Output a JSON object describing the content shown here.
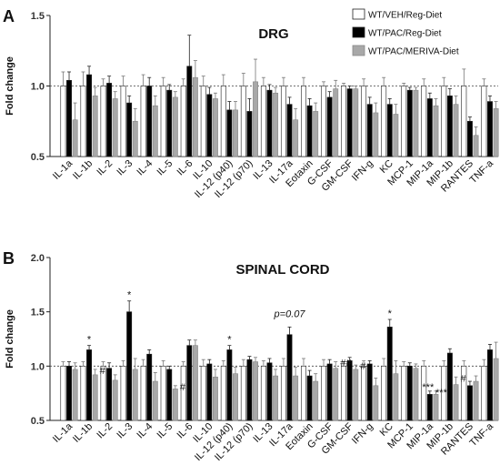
{
  "chart_data": [
    {
      "type": "bar",
      "panel": "A",
      "title": "DRG",
      "ylabel": "Fold change",
      "ylim": [
        0.5,
        1.5
      ],
      "yticks": [
        "0.5",
        "1.0",
        "1.5"
      ],
      "reference_line": 1.0,
      "legend_position": "top-right",
      "categories": [
        "IL-1a",
        "IL-1b",
        "IL-2",
        "IL-3",
        "IL-4",
        "IL-5",
        "IL-6",
        "IL-10",
        "IL-12 (p40)",
        "IL-12 (p70)",
        "IL-13",
        "IL-17a",
        "Eotaxin",
        "G-CSF",
        "GM-CSF",
        "IFN-g",
        "KC",
        "MCP-1",
        "MIP-1a",
        "MIP-1b",
        "RANTES",
        "TNF-a"
      ],
      "series": [
        {
          "name": "WT/VEH/Reg-Diet",
          "color": "#ffffff",
          "values": [
            1.0,
            1.0,
            1.0,
            1.0,
            1.0,
            1.0,
            1.0,
            1.0,
            1.0,
            1.0,
            1.0,
            1.0,
            1.0,
            1.0,
            1.0,
            1.0,
            1.0,
            1.0,
            1.0,
            1.0,
            1.0,
            1.0
          ],
          "errors": [
            0.1,
            0.1,
            0.05,
            0.07,
            0.08,
            0.06,
            0.05,
            0.07,
            0.08,
            0.09,
            0.06,
            0.06,
            0.06,
            0.03,
            0.02,
            0.05,
            0.06,
            0.02,
            0.05,
            0.06,
            0.12,
            0.05
          ]
        },
        {
          "name": "WT/PAC/Reg-Diet",
          "color": "#000000",
          "values": [
            1.04,
            1.08,
            1.02,
            0.88,
            1.0,
            0.97,
            1.14,
            0.94,
            0.83,
            0.82,
            0.97,
            0.87,
            0.86,
            0.92,
            0.98,
            0.87,
            0.87,
            0.97,
            0.91,
            0.93,
            0.75,
            0.89
          ],
          "errors": [
            0.06,
            0.06,
            0.05,
            0.05,
            0.06,
            0.04,
            0.22,
            0.05,
            0.06,
            0.09,
            0.04,
            0.05,
            0.05,
            0.04,
            0.02,
            0.05,
            0.04,
            0.02,
            0.04,
            0.05,
            0.03,
            0.04
          ]
        },
        {
          "name": "WT/PAC/MERIVA-Diet",
          "color": "#a8a8a8",
          "values": [
            0.76,
            0.93,
            0.91,
            0.75,
            0.86,
            0.92,
            1.06,
            0.91,
            0.83,
            1.03,
            0.95,
            0.76,
            0.82,
            0.98,
            0.98,
            0.81,
            0.8,
            0.97,
            0.86,
            0.87,
            0.65,
            0.84
          ],
          "errors": [
            0.12,
            0.06,
            0.05,
            0.09,
            0.07,
            0.04,
            0.12,
            0.04,
            0.06,
            0.16,
            0.04,
            0.08,
            0.06,
            0.06,
            0.02,
            0.07,
            0.07,
            0.02,
            0.05,
            0.06,
            0.06,
            0.05
          ]
        }
      ]
    },
    {
      "type": "bar",
      "panel": "B",
      "title": "SPINAL CORD",
      "ylabel": "Fold change",
      "ylim": [
        0.5,
        2.0
      ],
      "yticks": [
        "0.5",
        "1.0",
        "1.5",
        "2.0"
      ],
      "reference_line": 1.0,
      "categories": [
        "IL-1a",
        "IL-1b",
        "IL-2",
        "IL-3",
        "IL-4",
        "IL-5",
        "IL-6",
        "IL-10",
        "IL-12 (p40)",
        "IL-12 (p70)",
        "IL-13",
        "IL-17a",
        "Eotaxin",
        "G-CSF",
        "GM-CSF",
        "IFN-g",
        "KC",
        "MCP-1",
        "MIP-1a",
        "MIP-1b",
        "RANTES",
        "TNF-a"
      ],
      "series": [
        {
          "name": "WT/VEH/Reg-Diet",
          "color": "#ffffff",
          "values": [
            1.0,
            1.0,
            1.0,
            1.0,
            1.0,
            1.0,
            1.0,
            1.0,
            1.0,
            1.0,
            1.0,
            1.0,
            1.0,
            1.0,
            1.0,
            1.0,
            1.0,
            1.0,
            1.0,
            1.0,
            1.0,
            1.0
          ],
          "errors": [
            0.04,
            0.04,
            0.04,
            0.05,
            0.06,
            0.05,
            0.04,
            0.06,
            0.05,
            0.06,
            0.05,
            0.07,
            0.07,
            0.06,
            0.04,
            0.05,
            0.07,
            0.04,
            0.05,
            0.05,
            0.05,
            0.06
          ]
        },
        {
          "name": "WT/PAC/Reg-Diet",
          "color": "#000000",
          "values": [
            1.0,
            1.15,
            0.98,
            1.5,
            1.11,
            0.97,
            1.19,
            1.02,
            1.15,
            1.06,
            1.03,
            1.29,
            0.91,
            1.02,
            1.05,
            1.02,
            1.36,
            1.0,
            0.74,
            1.12,
            0.82,
            1.15
          ],
          "errors": [
            0.04,
            0.04,
            0.05,
            0.1,
            0.04,
            0.03,
            0.05,
            0.04,
            0.04,
            0.03,
            0.04,
            0.07,
            0.05,
            0.04,
            0.03,
            0.03,
            0.07,
            0.03,
            0.03,
            0.04,
            0.04,
            0.05
          ]
        },
        {
          "name": "WT/PAC/MERIVA-Diet",
          "color": "#a8a8a8",
          "values": [
            0.97,
            0.92,
            0.87,
            0.97,
            0.86,
            0.79,
            1.19,
            0.9,
            0.93,
            1.04,
            0.91,
            0.91,
            0.86,
            0.98,
            0.97,
            0.82,
            0.93,
            0.98,
            0.74,
            0.83,
            0.86,
            1.07
          ],
          "errors": [
            0.06,
            0.05,
            0.05,
            0.1,
            0.08,
            0.03,
            0.05,
            0.07,
            0.06,
            0.04,
            0.06,
            0.08,
            0.07,
            0.06,
            0.04,
            0.07,
            0.12,
            0.04,
            0.03,
            0.07,
            0.05,
            0.15
          ]
        }
      ],
      "annotations": [
        {
          "category": "IL-1b",
          "series": 1,
          "text": "*"
        },
        {
          "category": "IL-1b",
          "series": 2,
          "text": "#"
        },
        {
          "category": "IL-3",
          "series": 1,
          "text": "*"
        },
        {
          "category": "IL-5",
          "series": 2,
          "text": "#"
        },
        {
          "category": "IL-12 (p40)",
          "series": 1,
          "text": "*"
        },
        {
          "category": "IL-17a",
          "series": 1,
          "text": "p=0.07",
          "style": "italic"
        },
        {
          "category": "G-CSF",
          "series": 2,
          "text": "##"
        },
        {
          "category": "GM-CSF",
          "series": 2,
          "text": "#"
        },
        {
          "category": "KC",
          "series": 1,
          "text": "*"
        },
        {
          "category": "MIP-1a",
          "series": 1,
          "text": "***"
        },
        {
          "category": "MIP-1a",
          "series": 2,
          "text": "***"
        },
        {
          "category": "MIP-1b",
          "series": 2,
          "text": "#"
        }
      ]
    }
  ]
}
